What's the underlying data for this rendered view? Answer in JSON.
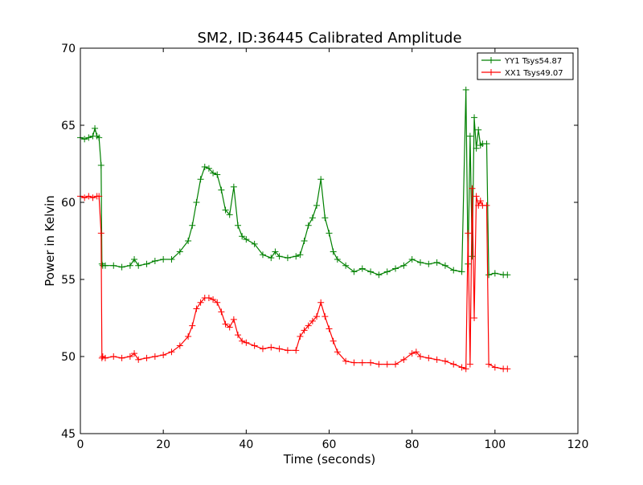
{
  "chart_data": {
    "type": "line",
    "title": "SM2, ID:36445 Calibrated Amplitude",
    "xlabel": "Time (seconds)",
    "ylabel": "Power in Kelvin",
    "xlim": [
      0,
      120
    ],
    "ylim": [
      45,
      70
    ],
    "xticks": [
      "0",
      "20",
      "40",
      "60",
      "80",
      "100",
      "120"
    ],
    "yticks": [
      "45",
      "50",
      "55",
      "60",
      "65",
      "70"
    ],
    "grid": false,
    "legend_position": "top-right",
    "marker": "+",
    "series": [
      {
        "name": "YY1 Tsys54.87",
        "color": "#008000",
        "x": [
          0,
          1,
          2,
          3,
          3.5,
          4,
          4.5,
          5,
          5.2,
          5.4,
          6,
          8,
          10,
          12,
          13,
          14,
          16,
          18,
          20,
          22,
          24,
          26,
          27,
          28,
          29,
          30,
          31,
          32,
          33,
          34,
          35,
          36,
          37,
          38,
          39,
          40,
          42,
          44,
          46,
          47,
          48,
          50,
          52,
          53,
          54,
          55,
          56,
          57,
          58,
          59,
          60,
          61,
          62,
          64,
          66,
          68,
          70,
          72,
          74,
          76,
          78,
          80,
          82,
          84,
          86,
          88,
          90,
          92,
          93,
          93.5,
          94,
          94.5,
          95,
          95.5,
          96,
          96.5,
          97,
          98,
          98.5,
          100,
          102,
          103
        ],
        "y": [
          64.2,
          64.1,
          64.2,
          64.3,
          64.8,
          64.3,
          64.2,
          62.4,
          56.0,
          55.9,
          55.9,
          55.9,
          55.8,
          55.9,
          56.3,
          55.9,
          56.0,
          56.2,
          56.3,
          56.3,
          56.8,
          57.5,
          58.5,
          60.0,
          61.5,
          62.3,
          62.2,
          61.9,
          61.8,
          60.8,
          59.5,
          59.2,
          61.0,
          58.5,
          57.8,
          57.6,
          57.3,
          56.6,
          56.4,
          56.8,
          56.5,
          56.4,
          56.5,
          56.6,
          57.5,
          58.5,
          59.0,
          59.8,
          61.5,
          59.0,
          58.0,
          56.8,
          56.3,
          55.9,
          55.5,
          55.7,
          55.5,
          55.3,
          55.5,
          55.7,
          55.9,
          56.3,
          56.1,
          56.0,
          56.1,
          55.9,
          55.6,
          55.5,
          67.3,
          56.0,
          64.3,
          56.5,
          65.5,
          63.5,
          64.7,
          63.7,
          63.8,
          63.8,
          55.3,
          55.4,
          55.3,
          55.3
        ]
      },
      {
        "name": "XX1 Tsys49.07",
        "color": "#ff0000",
        "x": [
          0,
          1,
          2,
          3,
          4,
          4.5,
          5,
          5.2,
          5.4,
          6,
          8,
          10,
          12,
          13,
          14,
          16,
          18,
          20,
          22,
          24,
          26,
          27,
          28,
          29,
          30,
          31,
          32,
          33,
          34,
          35,
          36,
          37,
          38,
          39,
          40,
          42,
          44,
          46,
          48,
          50,
          52,
          53,
          54,
          55,
          56,
          57,
          58,
          59,
          60,
          61,
          62,
          64,
          66,
          68,
          70,
          72,
          74,
          76,
          78,
          80,
          81,
          82,
          84,
          86,
          88,
          90,
          92,
          93,
          93.5,
          94,
          94.5,
          95,
          95.5,
          96,
          96.5,
          97,
          98,
          98.5,
          100,
          102,
          103
        ],
        "y": [
          60.4,
          60.3,
          60.4,
          60.3,
          60.4,
          60.4,
          58.0,
          49.9,
          50.0,
          49.9,
          50.0,
          49.9,
          50.0,
          50.2,
          49.8,
          49.9,
          50.0,
          50.1,
          50.3,
          50.7,
          51.3,
          52.0,
          53.1,
          53.5,
          53.8,
          53.8,
          53.7,
          53.5,
          52.9,
          52.1,
          51.9,
          52.4,
          51.4,
          51.0,
          50.9,
          50.7,
          50.5,
          50.6,
          50.5,
          50.4,
          50.4,
          51.3,
          51.7,
          52.0,
          52.3,
          52.6,
          53.5,
          52.6,
          51.8,
          51.0,
          50.3,
          49.7,
          49.6,
          49.6,
          49.6,
          49.5,
          49.5,
          49.5,
          49.8,
          50.2,
          50.3,
          50.0,
          49.9,
          49.8,
          49.7,
          49.5,
          49.3,
          49.2,
          58.0,
          49.5,
          60.9,
          52.5,
          60.4,
          59.8,
          60.1,
          59.8,
          59.8,
          49.5,
          49.3,
          49.2,
          49.2
        ]
      }
    ]
  }
}
